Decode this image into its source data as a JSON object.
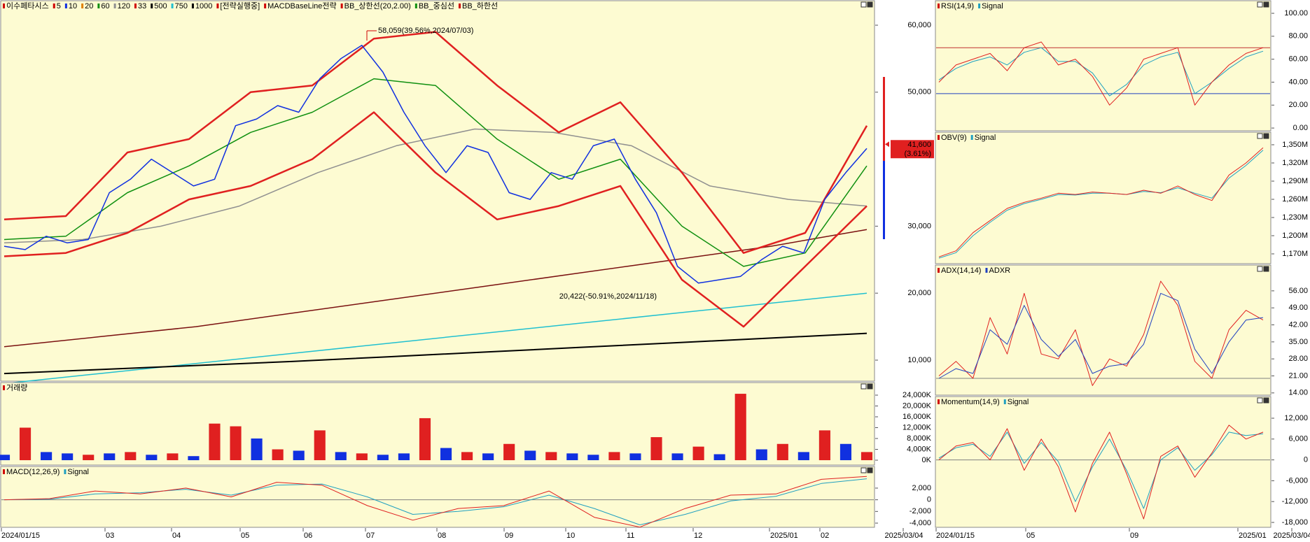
{
  "chart_data": [
    {
      "type": "line",
      "legend": [
        {
          "label": "이수페타시스",
          "color": "#d00000"
        },
        {
          "label": "5",
          "color": "#d00000"
        },
        {
          "label": "10",
          "color": "#1030e0"
        },
        {
          "label": "20",
          "color": "#e08000"
        },
        {
          "label": "60",
          "color": "#109010"
        },
        {
          "label": "120",
          "color": "#909090"
        },
        {
          "label": "33",
          "color": "#d00000"
        },
        {
          "label": "500",
          "color": "#000000"
        },
        {
          "label": "750",
          "color": "#20c0d0"
        },
        {
          "label": "1000",
          "color": "#000000"
        },
        {
          "label": "[전략실행중]",
          "color": "#d00000"
        },
        {
          "label": "MACDBaseLine전략",
          "color": "#d00000"
        },
        {
          "label": "BB_상한선(20,2.00)",
          "color": "#d00000"
        },
        {
          "label": "BB_중심선",
          "color": "#109010"
        },
        {
          "label": "BB_하한선",
          "color": "#d00000"
        }
      ],
      "ylim": [
        6760,
        63760
      ],
      "yticks": [
        {
          "value": 10000,
          "label": "10,000"
        },
        {
          "value": 20000,
          "label": "20,000"
        },
        {
          "value": 30000,
          "label": "30,000"
        },
        {
          "value": 50000,
          "label": "50,000"
        },
        {
          "value": 60000,
          "label": "60,000"
        }
      ],
      "series": [
        {
          "color": "#7a1010",
          "width": 1.5,
          "values": [
            12000,
            13500,
            15000,
            17000,
            19000,
            21000,
            23000,
            25000,
            27000,
            29500
          ]
        },
        {
          "color": "#20c0d0",
          "width": 1.5,
          "values": [
            6500,
            8000,
            9500,
            11000,
            12500,
            14000,
            15500,
            17000,
            18500,
            20000
          ]
        },
        {
          "color": "#000000",
          "width": 2,
          "values": [
            8000,
            8600,
            9200,
            9800,
            10500,
            11200,
            11900,
            12600,
            13300,
            14000
          ]
        },
        {
          "color": "#909090",
          "width": 1.5,
          "values": [
            27500,
            28000,
            30000,
            33000,
            38000,
            42000,
            44500,
            44000,
            42000,
            36000,
            34000,
            33000
          ]
        },
        {
          "color": "#109010",
          "width": 1.5,
          "values": [
            28000,
            28500,
            35000,
            39000,
            44000,
            47000,
            52000,
            51000,
            43000,
            37000,
            40000,
            30000,
            24000,
            26000,
            39000
          ]
        },
        {
          "color": "#e02020",
          "width": 2.5,
          "values": [
            31000,
            31500,
            41000,
            43000,
            50000,
            51000,
            58000,
            59000,
            51000,
            44000,
            48500,
            38000,
            26000,
            29000,
            45000
          ]
        },
        {
          "color": "#e02020",
          "width": 2.5,
          "values": [
            25500,
            26000,
            29000,
            34000,
            36000,
            40000,
            47000,
            38000,
            31000,
            33000,
            36000,
            22000,
            15000,
            24000,
            33000
          ]
        },
        {
          "color": "#1030e0",
          "width": 1.5,
          "values": [
            27000,
            26500,
            28500,
            27500,
            28000,
            35000,
            37000,
            40000,
            38000,
            36000,
            37000,
            45000,
            46000,
            48000,
            47000,
            52000,
            55000,
            57000,
            53000,
            47000,
            42000,
            38000,
            42000,
            41000,
            35000,
            34000,
            38000,
            37000,
            42000,
            43000,
            37000,
            32000,
            24000,
            21500,
            22000,
            22500,
            25000,
            27000,
            26000,
            34000,
            38000,
            41600
          ]
        }
      ],
      "annotations": [
        {
          "text": "58,059(39.56%,2024/07/03)",
          "color": "#d00000"
        },
        {
          "text": "20,422(-50.91%,2024/11/18)",
          "color": "#1030e0"
        }
      ],
      "last": {
        "value": 41600,
        "label": "41,600",
        "change": "(3.61%)"
      }
    },
    {
      "type": "bar",
      "legend": [
        {
          "label": "거래량",
          "color": "#d00000"
        }
      ],
      "ylim": [
        -2060,
        28900
      ],
      "yticks": [
        {
          "value": 0,
          "label": "0K"
        },
        {
          "value": 4000,
          "label": "4,000K"
        },
        {
          "value": 8000,
          "label": "8,000K"
        },
        {
          "value": 12000,
          "label": "12,000K"
        },
        {
          "value": 16000,
          "label": "16,000K"
        },
        {
          "value": 20000,
          "label": "20,000K"
        },
        {
          "value": 24000,
          "label": "24,000K"
        }
      ],
      "values": [
        2000,
        12000,
        3000,
        2500,
        2000,
        2500,
        3000,
        2000,
        2500,
        1500,
        13500,
        12500,
        8000,
        4000,
        3500,
        11000,
        3000,
        2500,
        2000,
        2500,
        15500,
        4500,
        3000,
        2500,
        6000,
        3500,
        3000,
        2500,
        2000,
        3000,
        2500,
        8500,
        2500,
        5000,
        2200,
        24500,
        4000,
        6000,
        3000,
        11000,
        6000,
        3000
      ],
      "colors": [
        "#1030e0",
        "#e02020",
        "#1030e0",
        "#1030e0",
        "#e02020",
        "#1030e0",
        "#e02020",
        "#1030e0",
        "#e02020",
        "#1030e0",
        "#e02020",
        "#e02020",
        "#1030e0",
        "#e02020",
        "#1030e0",
        "#e02020",
        "#1030e0",
        "#e02020",
        "#1030e0",
        "#1030e0",
        "#e02020",
        "#1030e0",
        "#e02020",
        "#1030e0",
        "#e02020",
        "#1030e0",
        "#e02020",
        "#1030e0",
        "#1030e0",
        "#e02020",
        "#1030e0",
        "#e02020",
        "#1030e0",
        "#e02020",
        "#1030e0",
        "#e02020",
        "#1030e0",
        "#e02020",
        "#1030e0",
        "#e02020",
        "#1030e0",
        "#e02020"
      ]
    },
    {
      "type": "line",
      "legend": [
        {
          "label": "MACD(12,26,9)",
          "color": "#d00000"
        },
        {
          "label": "Signal",
          "color": "#20a0c0"
        }
      ],
      "ylim": [
        -4840,
        5830
      ],
      "yticks": [
        {
          "value": -4000,
          "label": "-4,000"
        },
        {
          "value": -2000,
          "label": "-2,000"
        },
        0,
        {
          "value": 2000,
          "label": "2,000"
        }
      ],
      "hlines": [
        {
          "value": 0,
          "color": "#808080"
        }
      ],
      "series": [
        {
          "color": "#20a0c0",
          "width": 1,
          "values": [
            0,
            100,
            1000,
            1200,
            1800,
            800,
            2500,
            2700,
            500,
            -2500,
            -2000,
            -1200,
            800,
            -1500,
            -4300,
            -2500,
            -200,
            600,
            2800,
            3600
          ]
        },
        {
          "color": "#e02020",
          "width": 1,
          "values": [
            0,
            200,
            1500,
            1000,
            2000,
            500,
            3000,
            2500,
            -1000,
            -3500,
            -1500,
            -1000,
            1500,
            -3000,
            -4700,
            -1500,
            800,
            1000,
            3500,
            4000
          ]
        }
      ],
      "x_labels": [
        "2024/01/15",
        "03",
        "04",
        "05",
        "06",
        "07",
        "08",
        "09",
        "10",
        "11",
        "12",
        "2025/01",
        "02",
        "2025/03/04"
      ]
    },
    {
      "type": "line",
      "legend": [
        {
          "label": "RSI(14,9)",
          "color": "#d00000"
        },
        {
          "label": "Signal",
          "color": "#20a0c0"
        }
      ],
      "ylim": [
        -3,
        111.6
      ],
      "yticks": [
        {
          "value": 0,
          "label": "0.00"
        },
        {
          "value": 20,
          "label": "20.00"
        },
        {
          "value": 40,
          "label": "40.00"
        },
        {
          "value": 60,
          "label": "60.00"
        },
        {
          "value": 80,
          "label": "80.00"
        },
        {
          "value": 100,
          "label": "100.00"
        }
      ],
      "hlines": [
        {
          "value": 70,
          "color": "#c03030"
        },
        {
          "value": 30,
          "color": "#2040c0"
        }
      ],
      "series": [
        {
          "color": "#20a0c0",
          "width": 1,
          "values": [
            42,
            52,
            58,
            62,
            55,
            66,
            70,
            58,
            58,
            48,
            28,
            38,
            55,
            62,
            66,
            30,
            40,
            52,
            62,
            67
          ]
        },
        {
          "color": "#e02020",
          "width": 1,
          "values": [
            40,
            55,
            60,
            65,
            50,
            70,
            75,
            55,
            60,
            45,
            20,
            35,
            60,
            65,
            70,
            20,
            40,
            55,
            65,
            70
          ]
        }
      ]
    },
    {
      "type": "line",
      "legend": [
        {
          "label": "OBV(9)",
          "color": "#d00000"
        },
        {
          "label": "Signal",
          "color": "#20a0c0"
        }
      ],
      "ylim": [
        1152.7,
        1371.9
      ],
      "yticks": [
        {
          "value": 1170,
          "label": "1,170M"
        },
        {
          "value": 1200,
          "label": "1,200M"
        },
        {
          "value": 1230,
          "label": "1,230M"
        },
        {
          "value": 1260,
          "label": "1,260M"
        },
        {
          "value": 1290,
          "label": "1,290M"
        },
        {
          "value": 1320,
          "label": "1,320M"
        },
        {
          "value": 1350,
          "label": "1,350M"
        }
      ],
      "series": [
        {
          "color": "#20a0c0",
          "width": 1,
          "values": [
            1163,
            1172,
            1200,
            1222,
            1242,
            1253,
            1260,
            1268,
            1267,
            1270,
            1270,
            1268,
            1273,
            1271,
            1279,
            1270,
            1262,
            1295,
            1316,
            1341
          ]
        },
        {
          "color": "#e02020",
          "width": 1,
          "values": [
            1165,
            1175,
            1205,
            1225,
            1245,
            1255,
            1262,
            1270,
            1268,
            1272,
            1270,
            1268,
            1275,
            1270,
            1282,
            1268,
            1258,
            1300,
            1320,
            1345
          ]
        }
      ]
    },
    {
      "type": "line",
      "legend": [
        {
          "label": "ADX(14,14)",
          "color": "#d00000"
        },
        {
          "label": "ADXR",
          "color": "#2040c0"
        }
      ],
      "ylim": [
        12.8,
        66.9
      ],
      "yticks": [
        {
          "value": 14,
          "label": "14.00"
        },
        {
          "value": 21,
          "label": "21.00"
        },
        {
          "value": 28,
          "label": "28.00"
        },
        {
          "value": 35,
          "label": "35.00"
        },
        {
          "value": 42,
          "label": "42.00"
        },
        {
          "value": 49,
          "label": "49.00"
        },
        {
          "value": 56,
          "label": "56.00"
        }
      ],
      "hlines": [
        {
          "value": 20,
          "color": "#808080"
        }
      ],
      "series": [
        {
          "color": "#e02020",
          "width": 1,
          "values": [
            21,
            27,
            20,
            45,
            30,
            55,
            30,
            28,
            40,
            17,
            28,
            25,
            38,
            60,
            50,
            27,
            20,
            40,
            48,
            44
          ]
        },
        {
          "color": "#2040c0",
          "width": 1,
          "values": [
            20,
            24,
            22,
            40,
            34,
            50,
            36,
            29,
            36,
            22,
            25,
            26,
            34,
            55,
            52,
            32,
            22,
            35,
            44,
            45
          ]
        }
      ]
    },
    {
      "type": "line",
      "legend": [
        {
          "label": "Momentum(14,9)",
          "color": "#d00000"
        },
        {
          "label": "Signal",
          "color": "#20a0c0"
        }
      ],
      "ylim": [
        -19610,
        18440
      ],
      "yticks": [
        {
          "value": -18000,
          "label": "-18,000"
        },
        {
          "value": -12000,
          "label": "-12,000"
        },
        {
          "value": -6000,
          "label": "-6,000"
        },
        0,
        {
          "value": 6000,
          "label": "6,000"
        },
        {
          "value": 12000,
          "label": "12,000"
        }
      ],
      "hlines": [
        {
          "value": 0,
          "color": "#808080"
        }
      ],
      "series": [
        {
          "color": "#20a0c0",
          "width": 1,
          "values": [
            500,
            3500,
            4500,
            1000,
            8000,
            -1000,
            5000,
            -500,
            -12000,
            -2000,
            6000,
            -3000,
            -14000,
            0,
            3500,
            -3000,
            1500,
            8000,
            7000,
            7500
          ]
        },
        {
          "color": "#e02020",
          "width": 1,
          "values": [
            0,
            4000,
            5000,
            0,
            9000,
            -3000,
            6000,
            -2000,
            -15000,
            -1000,
            8000,
            -4000,
            -17000,
            1000,
            4000,
            -5000,
            2000,
            10000,
            6000,
            8000
          ]
        }
      ],
      "x_labels": [
        "2024/01/15",
        "05",
        "09",
        "2025/01",
        "2025/03/04"
      ]
    }
  ]
}
